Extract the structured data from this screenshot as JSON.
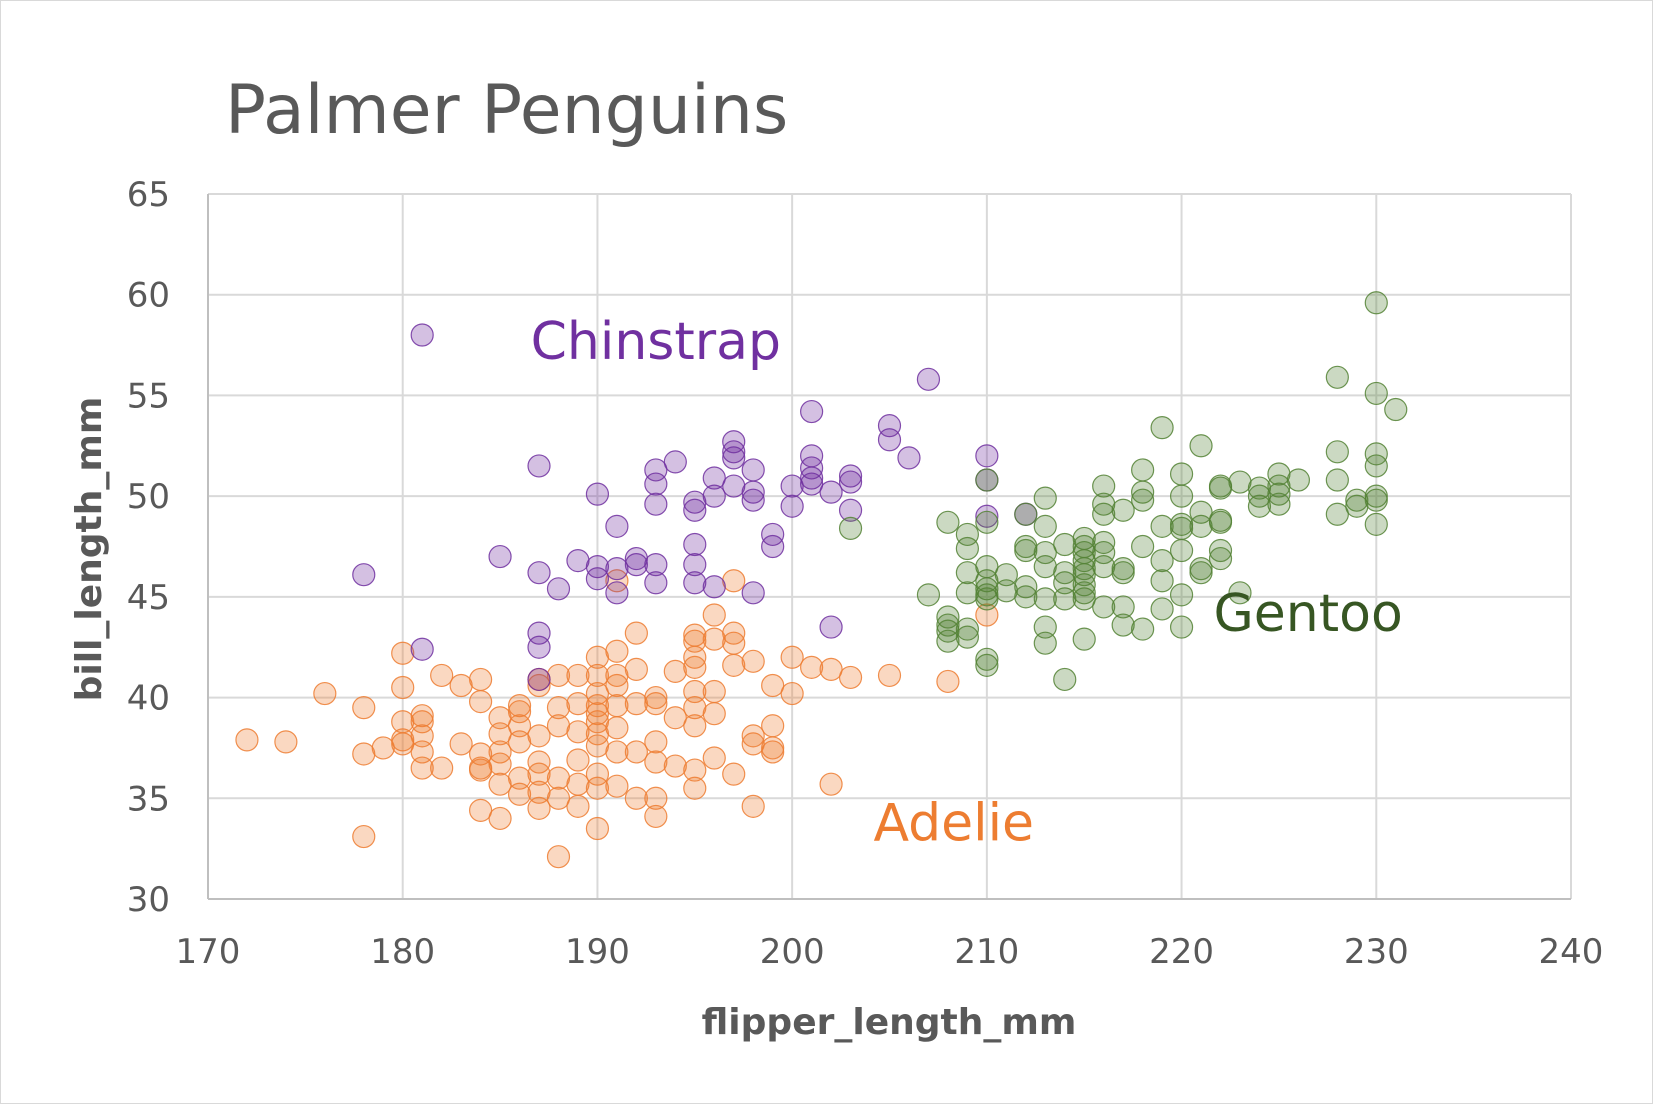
{
  "chart_data": {
    "type": "scatter",
    "title": "Palmer Penguins",
    "xlabel": "flipper_length_mm",
    "ylabel": "bill_length_mm",
    "xlim": [
      170,
      240
    ],
    "ylim": [
      30,
      65
    ],
    "x_ticks": [
      170,
      180,
      190,
      200,
      210,
      220,
      230,
      240
    ],
    "y_ticks": [
      30,
      35,
      40,
      45,
      50,
      55,
      60,
      65
    ],
    "grid": true,
    "legend": "none",
    "annotations": [
      {
        "text": "Chinstrap",
        "series": "Chinstrap"
      },
      {
        "text": "Gentoo",
        "series": "Gentoo"
      },
      {
        "text": "Adelie",
        "series": "Adelie"
      }
    ],
    "series": [
      {
        "name": "Adelie",
        "color": "#ED7D31",
        "points": [
          [
            172,
            37.9
          ],
          [
            174,
            37.8
          ],
          [
            176,
            40.2
          ],
          [
            178,
            39.5
          ],
          [
            178,
            37.2
          ],
          [
            178,
            33.1
          ],
          [
            179,
            37.5
          ],
          [
            180,
            42.2
          ],
          [
            180,
            40.5
          ],
          [
            180,
            38.8
          ],
          [
            180,
            37.9
          ],
          [
            180,
            37.7
          ],
          [
            181,
            39.1
          ],
          [
            181,
            38.8
          ],
          [
            181,
            38.1
          ],
          [
            181,
            37.3
          ],
          [
            181,
            36.5
          ],
          [
            182,
            41.1
          ],
          [
            182,
            36.5
          ],
          [
            183,
            40.6
          ],
          [
            183,
            37.7
          ],
          [
            184,
            40.9
          ],
          [
            184,
            39.8
          ],
          [
            184,
            37.2
          ],
          [
            184,
            36.5
          ],
          [
            184,
            36.4
          ],
          [
            184,
            34.4
          ],
          [
            185,
            39.0
          ],
          [
            185,
            38.2
          ],
          [
            185,
            37.3
          ],
          [
            185,
            36.7
          ],
          [
            185,
            35.7
          ],
          [
            185,
            34.0
          ],
          [
            186,
            39.6
          ],
          [
            186,
            39.3
          ],
          [
            186,
            38.6
          ],
          [
            186,
            37.8
          ],
          [
            186,
            36.0
          ],
          [
            186,
            35.2
          ],
          [
            187,
            40.6
          ],
          [
            187,
            40.9
          ],
          [
            187,
            38.1
          ],
          [
            187,
            36.8
          ],
          [
            187,
            36.2
          ],
          [
            187,
            35.3
          ],
          [
            187,
            34.5
          ],
          [
            188,
            41.1
          ],
          [
            188,
            39.5
          ],
          [
            188,
            38.6
          ],
          [
            188,
            36.0
          ],
          [
            188,
            35.0
          ],
          [
            188,
            32.1
          ],
          [
            189,
            41.1
          ],
          [
            189,
            39.7
          ],
          [
            189,
            38.3
          ],
          [
            189,
            36.9
          ],
          [
            189,
            35.7
          ],
          [
            189,
            34.6
          ],
          [
            190,
            42.0
          ],
          [
            190,
            41.1
          ],
          [
            190,
            40.2
          ],
          [
            190,
            39.6
          ],
          [
            190,
            39.2
          ],
          [
            190,
            38.8
          ],
          [
            190,
            38.2
          ],
          [
            190,
            37.6
          ],
          [
            190,
            36.2
          ],
          [
            190,
            35.5
          ],
          [
            190,
            33.5
          ],
          [
            191,
            45.8
          ],
          [
            191,
            42.3
          ],
          [
            191,
            41.1
          ],
          [
            191,
            40.6
          ],
          [
            191,
            39.6
          ],
          [
            191,
            38.5
          ],
          [
            191,
            37.3
          ],
          [
            191,
            35.6
          ],
          [
            192,
            43.2
          ],
          [
            192,
            41.4
          ],
          [
            192,
            39.7
          ],
          [
            192,
            37.3
          ],
          [
            192,
            35.0
          ],
          [
            193,
            40.0
          ],
          [
            193,
            39.7
          ],
          [
            193,
            37.8
          ],
          [
            193,
            36.8
          ],
          [
            193,
            35.0
          ],
          [
            193,
            34.1
          ],
          [
            194,
            41.3
          ],
          [
            194,
            39.0
          ],
          [
            194,
            36.6
          ],
          [
            195,
            43.1
          ],
          [
            195,
            42.8
          ],
          [
            195,
            42.0
          ],
          [
            195,
            41.5
          ],
          [
            195,
            40.3
          ],
          [
            195,
            39.5
          ],
          [
            195,
            38.6
          ],
          [
            195,
            36.4
          ],
          [
            195,
            35.5
          ],
          [
            196,
            44.1
          ],
          [
            196,
            42.9
          ],
          [
            196,
            40.3
          ],
          [
            196,
            39.2
          ],
          [
            196,
            37.0
          ],
          [
            197,
            45.8
          ],
          [
            197,
            43.2
          ],
          [
            197,
            42.7
          ],
          [
            197,
            41.6
          ],
          [
            197,
            36.2
          ],
          [
            198,
            41.8
          ],
          [
            198,
            38.1
          ],
          [
            198,
            37.7
          ],
          [
            198,
            34.6
          ],
          [
            199,
            40.6
          ],
          [
            199,
            38.6
          ],
          [
            199,
            37.5
          ],
          [
            199,
            37.3
          ],
          [
            200,
            42.0
          ],
          [
            200,
            40.2
          ],
          [
            201,
            41.5
          ],
          [
            202,
            41.4
          ],
          [
            202,
            35.7
          ],
          [
            203,
            41.0
          ],
          [
            205,
            41.1
          ],
          [
            208,
            40.8
          ],
          [
            210,
            44.1
          ]
        ]
      },
      {
        "name": "Chinstrap",
        "color": "#7030A0",
        "points": [
          [
            178,
            46.1
          ],
          [
            181,
            58.0
          ],
          [
            181,
            42.4
          ],
          [
            185,
            47.0
          ],
          [
            187,
            51.5
          ],
          [
            187,
            46.2
          ],
          [
            187,
            43.2
          ],
          [
            187,
            42.5
          ],
          [
            187,
            40.9
          ],
          [
            188,
            45.4
          ],
          [
            189,
            46.8
          ],
          [
            190,
            50.1
          ],
          [
            190,
            46.5
          ],
          [
            190,
            45.9
          ],
          [
            191,
            48.5
          ],
          [
            191,
            46.4
          ],
          [
            191,
            45.2
          ],
          [
            192,
            46.9
          ],
          [
            192,
            46.6
          ],
          [
            193,
            51.3
          ],
          [
            193,
            50.6
          ],
          [
            193,
            49.6
          ],
          [
            193,
            46.6
          ],
          [
            193,
            45.7
          ],
          [
            194,
            51.7
          ],
          [
            195,
            49.7
          ],
          [
            195,
            49.3
          ],
          [
            195,
            47.6
          ],
          [
            195,
            46.6
          ],
          [
            195,
            45.7
          ],
          [
            196,
            50.9
          ],
          [
            196,
            50.0
          ],
          [
            196,
            45.5
          ],
          [
            197,
            52.7
          ],
          [
            197,
            52.2
          ],
          [
            197,
            51.9
          ],
          [
            197,
            50.5
          ],
          [
            198,
            51.3
          ],
          [
            198,
            50.2
          ],
          [
            198,
            49.8
          ],
          [
            198,
            45.2
          ],
          [
            199,
            48.1
          ],
          [
            199,
            47.5
          ],
          [
            200,
            50.5
          ],
          [
            200,
            49.5
          ],
          [
            201,
            54.2
          ],
          [
            201,
            52.0
          ],
          [
            201,
            51.4
          ],
          [
            201,
            50.9
          ],
          [
            201,
            50.6
          ],
          [
            202,
            50.2
          ],
          [
            202,
            43.5
          ],
          [
            203,
            51.0
          ],
          [
            203,
            50.7
          ],
          [
            203,
            49.3
          ],
          [
            205,
            53.5
          ],
          [
            205,
            52.8
          ],
          [
            206,
            51.9
          ],
          [
            207,
            55.8
          ],
          [
            210,
            52.0
          ],
          [
            210,
            50.8
          ],
          [
            210,
            49.0
          ],
          [
            212,
            49.1
          ]
        ]
      },
      {
        "name": "Gentoo",
        "color": "#548235",
        "points": [
          [
            203,
            48.4
          ],
          [
            207,
            45.1
          ],
          [
            208,
            48.7
          ],
          [
            208,
            44.0
          ],
          [
            208,
            43.6
          ],
          [
            208,
            43.3
          ],
          [
            208,
            42.8
          ],
          [
            209,
            48.1
          ],
          [
            209,
            47.4
          ],
          [
            209,
            46.2
          ],
          [
            209,
            45.2
          ],
          [
            209,
            43.4
          ],
          [
            209,
            43.0
          ],
          [
            210,
            50.8
          ],
          [
            210,
            48.7
          ],
          [
            210,
            46.5
          ],
          [
            210,
            45.8
          ],
          [
            210,
            45.4
          ],
          [
            210,
            45.1
          ],
          [
            210,
            44.9
          ],
          [
            210,
            41.9
          ],
          [
            210,
            41.6
          ],
          [
            211,
            46.1
          ],
          [
            211,
            45.3
          ],
          [
            212,
            49.1
          ],
          [
            212,
            47.5
          ],
          [
            212,
            47.3
          ],
          [
            212,
            45.5
          ],
          [
            212,
            45.0
          ],
          [
            213,
            49.9
          ],
          [
            213,
            48.5
          ],
          [
            213,
            47.2
          ],
          [
            213,
            46.5
          ],
          [
            213,
            44.9
          ],
          [
            213,
            43.5
          ],
          [
            213,
            42.7
          ],
          [
            214,
            47.6
          ],
          [
            214,
            46.2
          ],
          [
            214,
            45.7
          ],
          [
            214,
            44.9
          ],
          [
            214,
            40.9
          ],
          [
            215,
            47.9
          ],
          [
            215,
            47.5
          ],
          [
            215,
            47.2
          ],
          [
            215,
            46.8
          ],
          [
            215,
            46.4
          ],
          [
            215,
            46.1
          ],
          [
            215,
            45.6
          ],
          [
            215,
            45.2
          ],
          [
            215,
            44.9
          ],
          [
            215,
            42.9
          ],
          [
            216,
            50.5
          ],
          [
            216,
            49.6
          ],
          [
            216,
            49.1
          ],
          [
            216,
            47.7
          ],
          [
            216,
            47.2
          ],
          [
            216,
            46.5
          ],
          [
            216,
            44.5
          ],
          [
            217,
            49.3
          ],
          [
            217,
            46.4
          ],
          [
            217,
            46.2
          ],
          [
            217,
            44.5
          ],
          [
            217,
            43.6
          ],
          [
            218,
            51.3
          ],
          [
            218,
            50.2
          ],
          [
            218,
            49.8
          ],
          [
            218,
            47.5
          ],
          [
            218,
            43.4
          ],
          [
            219,
            53.4
          ],
          [
            219,
            48.5
          ],
          [
            219,
            46.8
          ],
          [
            219,
            45.8
          ],
          [
            219,
            44.4
          ],
          [
            220,
            51.1
          ],
          [
            220,
            50.0
          ],
          [
            220,
            48.6
          ],
          [
            220,
            48.4
          ],
          [
            220,
            47.3
          ],
          [
            220,
            45.1
          ],
          [
            220,
            43.5
          ],
          [
            221,
            52.5
          ],
          [
            221,
            49.2
          ],
          [
            221,
            48.5
          ],
          [
            221,
            46.4
          ],
          [
            221,
            46.2
          ],
          [
            222,
            50.5
          ],
          [
            222,
            50.4
          ],
          [
            222,
            48.8
          ],
          [
            222,
            48.7
          ],
          [
            222,
            47.3
          ],
          [
            222,
            46.9
          ],
          [
            223,
            50.7
          ],
          [
            223,
            45.2
          ],
          [
            224,
            50.4
          ],
          [
            224,
            50.0
          ],
          [
            224,
            49.5
          ],
          [
            225,
            51.1
          ],
          [
            225,
            50.5
          ],
          [
            225,
            50.1
          ],
          [
            225,
            49.6
          ],
          [
            226,
            50.8
          ],
          [
            228,
            55.9
          ],
          [
            228,
            52.2
          ],
          [
            228,
            50.8
          ],
          [
            228,
            49.1
          ],
          [
            229,
            49.8
          ],
          [
            229,
            49.5
          ],
          [
            230,
            59.6
          ],
          [
            230,
            55.1
          ],
          [
            230,
            52.1
          ],
          [
            230,
            51.5
          ],
          [
            230,
            50.0
          ],
          [
            230,
            49.8
          ],
          [
            230,
            48.6
          ],
          [
            231,
            54.3
          ]
        ]
      }
    ]
  }
}
